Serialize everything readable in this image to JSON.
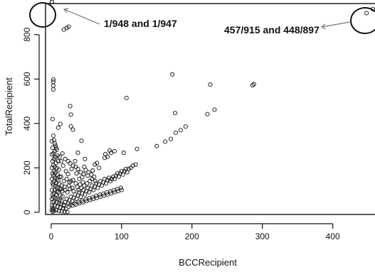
{
  "chart_data": {
    "type": "scatter",
    "xlabel": "BCCRecipient",
    "ylabel": "TotalRecipient",
    "xlim": [
      -8,
      460
    ],
    "ylim": [
      -10,
      940
    ],
    "x_ticks": [
      0,
      100,
      200,
      300,
      400
    ],
    "y_ticks": [
      0,
      200,
      400,
      600,
      800
    ],
    "x_tick_labels": [
      "0",
      "100",
      "200",
      "300",
      "400"
    ],
    "y_tick_labels": [
      "0",
      "200",
      "400",
      "600",
      "800"
    ],
    "grid": false,
    "marker": "open-circle",
    "annotations": [
      {
        "text": "1/948 and 1/947",
        "target": [
          1,
          948
        ]
      },
      {
        "text": "457/915 and 448/897",
        "target": [
          452,
          906
        ]
      }
    ],
    "points": [
      [
        1,
        948
      ],
      [
        1,
        947
      ],
      [
        18,
        823
      ],
      [
        22,
        830
      ],
      [
        25,
        836
      ],
      [
        448,
        897
      ],
      [
        457,
        915
      ],
      [
        172,
        621
      ],
      [
        226,
        575
      ],
      [
        288,
        577
      ],
      [
        286,
        572
      ],
      [
        107,
        515
      ],
      [
        176,
        447
      ],
      [
        232,
        462
      ],
      [
        222,
        442
      ],
      [
        3,
        598
      ],
      [
        3,
        588
      ],
      [
        3,
        570
      ],
      [
        3,
        553
      ],
      [
        2,
        420
      ],
      [
        27,
        478
      ],
      [
        13,
        398
      ],
      [
        10,
        381
      ],
      [
        28,
        440
      ],
      [
        28,
        387
      ],
      [
        31,
        372
      ],
      [
        43,
        322
      ],
      [
        150,
        298
      ],
      [
        162,
        318
      ],
      [
        170,
        330
      ],
      [
        177,
        358
      ],
      [
        184,
        370
      ],
      [
        191,
        386
      ],
      [
        122,
        285
      ],
      [
        83,
        278
      ],
      [
        85,
        268
      ],
      [
        90,
        275
      ],
      [
        103,
        268
      ],
      [
        77,
        262
      ],
      [
        76,
        245
      ],
      [
        80,
        250
      ],
      [
        62,
        215
      ],
      [
        65,
        222
      ],
      [
        68,
        200
      ],
      [
        59,
        188
      ],
      [
        52,
        165
      ],
      [
        40,
        150
      ],
      [
        28,
        140
      ],
      [
        44,
        158
      ],
      [
        36,
        175
      ],
      [
        47,
        205
      ],
      [
        21,
        185
      ],
      [
        24,
        172
      ],
      [
        14,
        160
      ],
      [
        29,
        195
      ],
      [
        38,
        268
      ],
      [
        48,
        240
      ],
      [
        34,
        230
      ],
      [
        4,
        325
      ],
      [
        5,
        310
      ],
      [
        6,
        300
      ],
      [
        7,
        290
      ],
      [
        8,
        282
      ],
      [
        5,
        275
      ],
      [
        3,
        265
      ],
      [
        9,
        255
      ],
      [
        6,
        248
      ],
      [
        4,
        240
      ],
      [
        10,
        230
      ],
      [
        7,
        222
      ],
      [
        3,
        212
      ],
      [
        5,
        205
      ],
      [
        8,
        198
      ],
      [
        11,
        192
      ],
      [
        4,
        185
      ],
      [
        6,
        178
      ],
      [
        9,
        170
      ],
      [
        3,
        165
      ],
      [
        12,
        160
      ],
      [
        5,
        155
      ],
      [
        8,
        150
      ],
      [
        10,
        144
      ],
      [
        4,
        138
      ],
      [
        7,
        132
      ],
      [
        11,
        128
      ],
      [
        3,
        122
      ],
      [
        6,
        118
      ],
      [
        9,
        112
      ],
      [
        12,
        108
      ],
      [
        14,
        104
      ],
      [
        5,
        100
      ],
      [
        8,
        95
      ],
      [
        10,
        90
      ],
      [
        4,
        85
      ],
      [
        7,
        80
      ],
      [
        13,
        76
      ],
      [
        16,
        72
      ],
      [
        3,
        68
      ],
      [
        6,
        64
      ],
      [
        9,
        60
      ],
      [
        12,
        56
      ],
      [
        15,
        52
      ],
      [
        4,
        48
      ],
      [
        8,
        44
      ],
      [
        11,
        40
      ],
      [
        14,
        36
      ],
      [
        18,
        33
      ],
      [
        5,
        30
      ],
      [
        9,
        26
      ],
      [
        13,
        22
      ],
      [
        17,
        18
      ],
      [
        21,
        15
      ],
      [
        3,
        12
      ],
      [
        7,
        9
      ],
      [
        11,
        6
      ],
      [
        15,
        4
      ],
      [
        19,
        3
      ],
      [
        23,
        2
      ],
      [
        2,
        3
      ],
      [
        4,
        6
      ],
      [
        1,
        10
      ],
      [
        2,
        20
      ],
      [
        1,
        30
      ],
      [
        2,
        45
      ],
      [
        1,
        60
      ],
      [
        2,
        80
      ],
      [
        1,
        100
      ],
      [
        2,
        130
      ],
      [
        1,
        150
      ],
      [
        2,
        175
      ],
      [
        1,
        200
      ],
      [
        2,
        230
      ],
      [
        1,
        260
      ],
      [
        2,
        290
      ],
      [
        1,
        320
      ],
      [
        3,
        345
      ],
      [
        18,
        30
      ],
      [
        20,
        45
      ],
      [
        22,
        60
      ],
      [
        24,
        40
      ],
      [
        26,
        55
      ],
      [
        28,
        70
      ],
      [
        30,
        50
      ],
      [
        32,
        65
      ],
      [
        34,
        80
      ],
      [
        36,
        60
      ],
      [
        38,
        75
      ],
      [
        40,
        90
      ],
      [
        42,
        70
      ],
      [
        44,
        85
      ],
      [
        46,
        100
      ],
      [
        48,
        80
      ],
      [
        50,
        95
      ],
      [
        52,
        110
      ],
      [
        54,
        90
      ],
      [
        56,
        105
      ],
      [
        58,
        120
      ],
      [
        60,
        100
      ],
      [
        62,
        115
      ],
      [
        64,
        130
      ],
      [
        66,
        110
      ],
      [
        68,
        125
      ],
      [
        70,
        140
      ],
      [
        72,
        120
      ],
      [
        74,
        135
      ],
      [
        76,
        150
      ],
      [
        78,
        130
      ],
      [
        80,
        145
      ],
      [
        82,
        155
      ],
      [
        84,
        140
      ],
      [
        86,
        150
      ],
      [
        88,
        160
      ],
      [
        90,
        150
      ],
      [
        92,
        165
      ],
      [
        94,
        175
      ],
      [
        96,
        160
      ],
      [
        98,
        175
      ],
      [
        100,
        185
      ],
      [
        102,
        170
      ],
      [
        104,
        185
      ],
      [
        106,
        195
      ],
      [
        108,
        180
      ],
      [
        110,
        195
      ],
      [
        113,
        200
      ],
      [
        116,
        210
      ],
      [
        120,
        215
      ],
      [
        25,
        25
      ],
      [
        30,
        30
      ],
      [
        35,
        35
      ],
      [
        40,
        40
      ],
      [
        45,
        45
      ],
      [
        50,
        50
      ],
      [
        55,
        55
      ],
      [
        60,
        60
      ],
      [
        65,
        65
      ],
      [
        70,
        70
      ],
      [
        75,
        75
      ],
      [
        80,
        80
      ],
      [
        85,
        85
      ],
      [
        90,
        90
      ],
      [
        95,
        95
      ],
      [
        100,
        100
      ],
      [
        27,
        33
      ],
      [
        33,
        40
      ],
      [
        39,
        47
      ],
      [
        44,
        52
      ],
      [
        49,
        58
      ],
      [
        54,
        63
      ],
      [
        59,
        68
      ],
      [
        64,
        74
      ],
      [
        69,
        79
      ],
      [
        74,
        84
      ],
      [
        79,
        89
      ],
      [
        84,
        94
      ],
      [
        89,
        99
      ],
      [
        94,
        104
      ],
      [
        99,
        110
      ],
      [
        20,
        100
      ],
      [
        25,
        120
      ],
      [
        30,
        110
      ],
      [
        35,
        130
      ],
      [
        15,
        120
      ],
      [
        18,
        140
      ],
      [
        22,
        150
      ],
      [
        26,
        135
      ],
      [
        31,
        145
      ],
      [
        16,
        95
      ],
      [
        19,
        115
      ],
      [
        23,
        90
      ],
      [
        27,
        105
      ],
      [
        32,
        95
      ],
      [
        37,
        115
      ],
      [
        41,
        125
      ],
      [
        45,
        135
      ],
      [
        39,
        100
      ],
      [
        43,
        110
      ],
      [
        47,
        120
      ],
      [
        51,
        130
      ],
      [
        55,
        140
      ],
      [
        58,
        150
      ],
      [
        61,
        160
      ],
      [
        63,
        140
      ],
      [
        57,
        170
      ],
      [
        53,
        180
      ],
      [
        49,
        190
      ],
      [
        46,
        172
      ],
      [
        42,
        180
      ],
      [
        38,
        195
      ],
      [
        35,
        205
      ],
      [
        31,
        210
      ],
      [
        27,
        220
      ],
      [
        24,
        230
      ],
      [
        20,
        240
      ],
      [
        17,
        210
      ],
      [
        14,
        230
      ],
      [
        12,
        250
      ],
      [
        16,
        265
      ]
    ]
  }
}
